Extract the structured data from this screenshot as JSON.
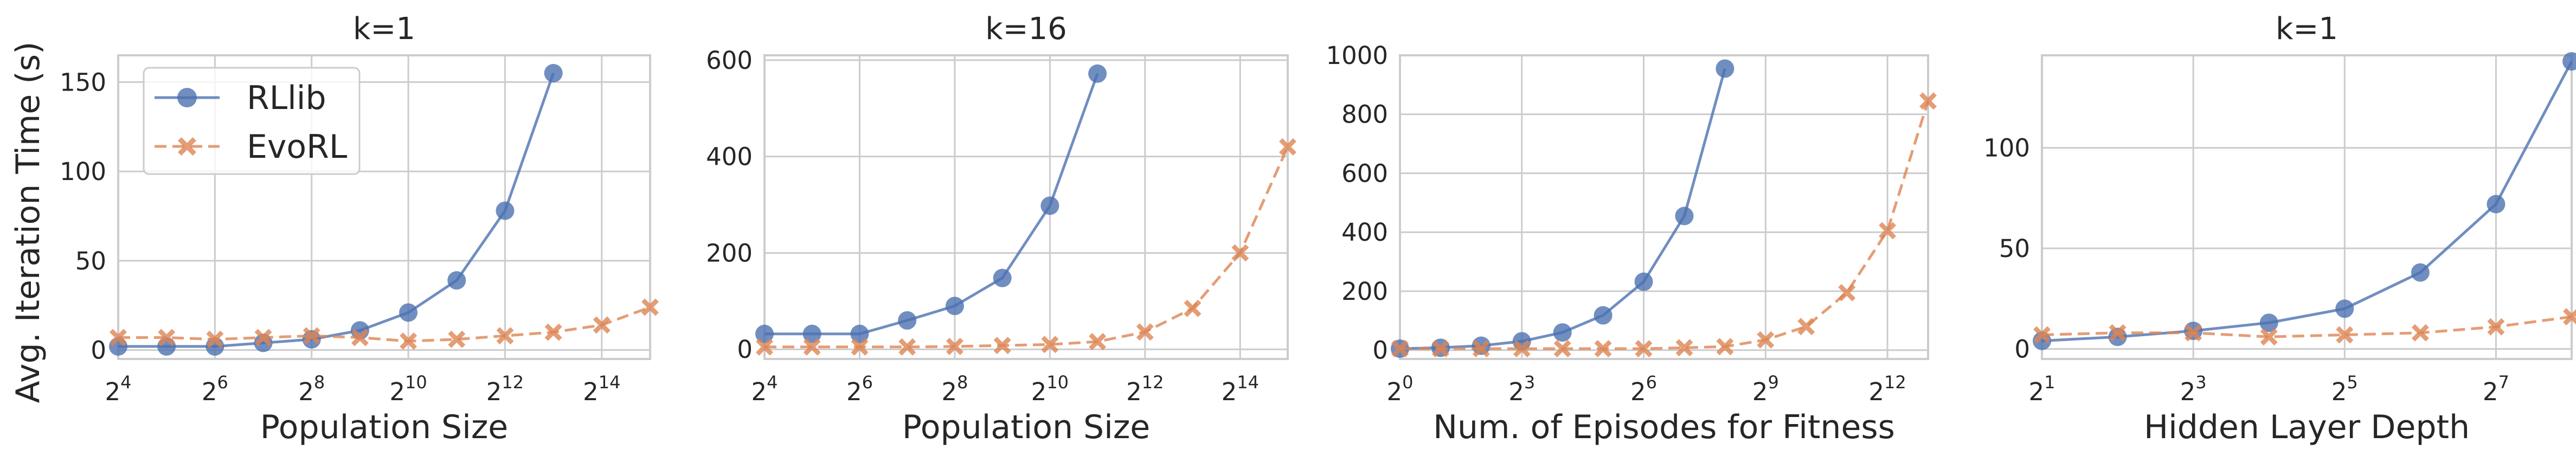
{
  "figure": {
    "ylabel": "Avg. Iteration Time (s)"
  },
  "legend": {
    "location": "upper-left",
    "entries": [
      "RLlib",
      "EvoRL"
    ]
  },
  "colors": {
    "rllib": "#4c72b0",
    "evorl": "#dd8452",
    "grid": "#cccccc",
    "spine": "#cccccc",
    "text": "#262626"
  },
  "chart_data": [
    {
      "type": "line",
      "title": "k=1",
      "xlabel": "Population Size",
      "xscale": "log2",
      "xlim_exp": [
        4,
        15
      ],
      "xticks_exp": [
        4,
        6,
        8,
        10,
        12,
        14
      ],
      "ylim": [
        -5,
        165
      ],
      "yticks": [
        0,
        50,
        100,
        150
      ],
      "series": [
        {
          "name": "RLlib",
          "x_exp": [
            4,
            5,
            6,
            7,
            8,
            9,
            10,
            11,
            12,
            13
          ],
          "values": [
            2,
            2,
            2,
            4,
            6,
            11,
            21,
            39,
            78,
            155
          ]
        },
        {
          "name": "EvoRL",
          "x_exp": [
            4,
            5,
            6,
            7,
            8,
            9,
            10,
            11,
            12,
            13,
            14,
            15
          ],
          "values": [
            7,
            7,
            6,
            7,
            8,
            7,
            5,
            6,
            8,
            10,
            14,
            24
          ]
        }
      ]
    },
    {
      "type": "line",
      "title": "k=16",
      "xlabel": "Population Size",
      "xscale": "log2",
      "xlim_exp": [
        4,
        15
      ],
      "xticks_exp": [
        4,
        6,
        8,
        10,
        12,
        14
      ],
      "ylim": [
        -20,
        610
      ],
      "yticks": [
        0,
        200,
        400,
        600
      ],
      "series": [
        {
          "name": "RLlib",
          "x_exp": [
            4,
            5,
            6,
            7,
            8,
            9,
            10,
            11
          ],
          "values": [
            32,
            32,
            32,
            60,
            90,
            148,
            298,
            572
          ]
        },
        {
          "name": "EvoRL",
          "x_exp": [
            4,
            5,
            6,
            7,
            8,
            9,
            10,
            11,
            12,
            13,
            14,
            15
          ],
          "values": [
            5,
            5,
            5,
            5,
            6,
            8,
            10,
            16,
            36,
            85,
            200,
            420
          ]
        }
      ]
    },
    {
      "type": "line",
      "title": "",
      "xlabel": "Num. of Episodes for Fitness",
      "xscale": "log2",
      "xlim_exp": [
        0,
        13
      ],
      "xticks_exp": [
        0,
        3,
        6,
        9,
        12
      ],
      "ylim": [
        -30,
        1000
      ],
      "yticks": [
        0,
        200,
        400,
        600,
        800,
        1000
      ],
      "series": [
        {
          "name": "RLlib",
          "x_exp": [
            0,
            1,
            2,
            3,
            4,
            5,
            6,
            7,
            8
          ],
          "values": [
            5,
            8,
            15,
            30,
            60,
            118,
            232,
            455,
            955
          ]
        },
        {
          "name": "EvoRL",
          "x_exp": [
            0,
            1,
            2,
            3,
            4,
            5,
            6,
            7,
            8,
            9,
            10,
            11,
            12,
            13
          ],
          "values": [
            5,
            5,
            5,
            5,
            5,
            5,
            5,
            8,
            12,
            35,
            80,
            195,
            405,
            845
          ]
        }
      ]
    },
    {
      "type": "line",
      "title": "k=1",
      "xlabel": "Hidden Layer Depth",
      "xscale": "log2",
      "xlim_exp": [
        1,
        8
      ],
      "xticks_exp": [
        1,
        3,
        5,
        7
      ],
      "ylim": [
        -5,
        146
      ],
      "yticks": [
        0,
        50,
        100
      ],
      "series": [
        {
          "name": "RLlib",
          "x_exp": [
            1,
            2,
            3,
            4,
            5,
            6,
            7,
            8
          ],
          "values": [
            4,
            6,
            9,
            13,
            20,
            38,
            72,
            143
          ]
        },
        {
          "name": "EvoRL",
          "x_exp": [
            1,
            2,
            3,
            4,
            5,
            6,
            7,
            8
          ],
          "values": [
            7,
            8,
            8,
            6,
            7,
            8,
            11,
            16
          ]
        }
      ]
    }
  ]
}
